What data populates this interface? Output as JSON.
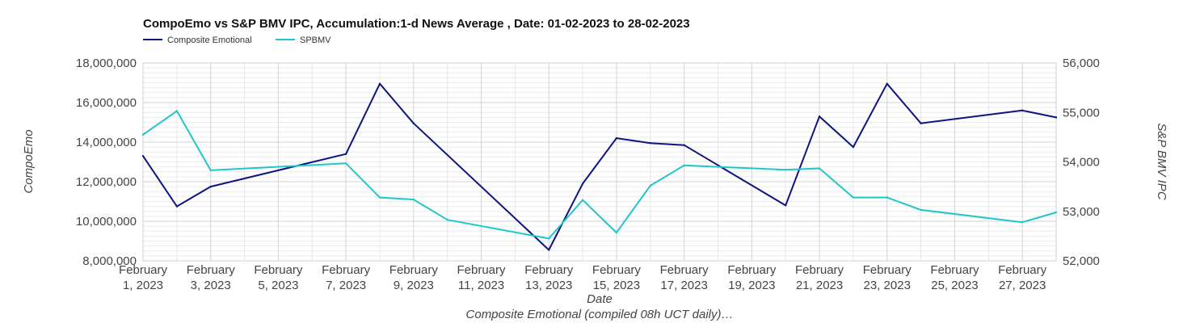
{
  "chart_data": {
    "type": "line",
    "title": "CompoEmo vs S&P BMV IPC, Accumulation:1-d News Average , Date: 01-02-2023 to 28-02-2023",
    "xlabel": "Date",
    "footer": "Composite Emotional (compiled 08h UCT daily)…",
    "ylabel_left": "CompoEmo",
    "ylabel_right": "S&P BMV IPC",
    "ylim_left": [
      8000000,
      18000000
    ],
    "ylim_right": [
      52000,
      56000
    ],
    "yticks_left": [
      "8,000,000",
      "10,000,000",
      "12,000,000",
      "14,000,000",
      "16,000,000",
      "18,000,000"
    ],
    "yticks_right": [
      "52,000",
      "53,000",
      "54,000",
      "55,000",
      "56,000"
    ],
    "x_tick_labels": [
      {
        "day": 1,
        "l1": "February",
        "l2": "1, 2023"
      },
      {
        "day": 3,
        "l1": "February",
        "l2": "3, 2023"
      },
      {
        "day": 5,
        "l1": "February",
        "l2": "5, 2023"
      },
      {
        "day": 7,
        "l1": "February",
        "l2": "7, 2023"
      },
      {
        "day": 9,
        "l1": "February",
        "l2": "9, 2023"
      },
      {
        "day": 11,
        "l1": "February",
        "l2": "11, 2023"
      },
      {
        "day": 13,
        "l1": "February",
        "l2": "13, 2023"
      },
      {
        "day": 15,
        "l1": "February",
        "l2": "15, 2023"
      },
      {
        "day": 17,
        "l1": "February",
        "l2": "17, 2023"
      },
      {
        "day": 19,
        "l1": "February",
        "l2": "19, 2023"
      },
      {
        "day": 21,
        "l1": "February",
        "l2": "21, 2023"
      },
      {
        "day": 23,
        "l1": "February",
        "l2": "23, 2023"
      },
      {
        "day": 25,
        "l1": "February",
        "l2": "25, 2023"
      },
      {
        "day": 27,
        "l1": "February",
        "l2": "27, 2023"
      }
    ],
    "legend_position": "top-left",
    "grid": true,
    "series": [
      {
        "name": "Composite Emotional",
        "axis": "left",
        "color": "#0d1580",
        "x": [
          "2023-02-01",
          "2023-02-02",
          "2023-02-03",
          "2023-02-07",
          "2023-02-08",
          "2023-02-09",
          "2023-02-13",
          "2023-02-14",
          "2023-02-15",
          "2023-02-16",
          "2023-02-17",
          "2023-02-20",
          "2023-02-21",
          "2023-02-22",
          "2023-02-23",
          "2023-02-24",
          "2023-02-27",
          "2023-02-28"
        ],
        "y": [
          13300000,
          10750000,
          11750000,
          13400000,
          16950000,
          14950000,
          8550000,
          11900000,
          14200000,
          13950000,
          13850000,
          10800000,
          15300000,
          13750000,
          16950000,
          14950000,
          15600000,
          15250000
        ]
      },
      {
        "name": "SPBMV",
        "axis": "right",
        "color": "#1fc6cc",
        "x": [
          "2023-02-01",
          "2023-02-02",
          "2023-02-03",
          "2023-02-07",
          "2023-02-08",
          "2023-02-09",
          "2023-02-10",
          "2023-02-13",
          "2023-02-14",
          "2023-02-15",
          "2023-02-16",
          "2023-02-17",
          "2023-02-20",
          "2023-02-21",
          "2023-02-22",
          "2023-02-23",
          "2023-02-24",
          "2023-02-27",
          "2023-02-28"
        ],
        "y": [
          54550,
          55030,
          53830,
          53970,
          53280,
          53240,
          52830,
          52450,
          53230,
          52570,
          53520,
          53930,
          53840,
          53870,
          53280,
          53280,
          53030,
          52780,
          52980
        ]
      }
    ]
  }
}
